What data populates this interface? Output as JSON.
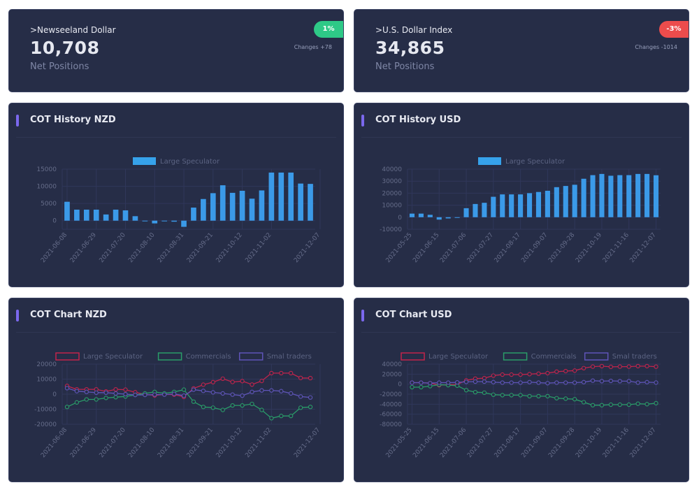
{
  "stat_nzd": {
    "title": ">Newseeland Dollar",
    "value": "10,708",
    "subtitle": "Net Positions",
    "badge": "1%",
    "changes": "Changes +78"
  },
  "stat_usd": {
    "title": ">U.S. Dollar Index",
    "value": "34,865",
    "subtitle": "Net Positions",
    "badge": "-3%",
    "changes": "Changes -1014"
  },
  "colors": {
    "bar": "#3b9ae8",
    "legend_bar": "#36a2eb",
    "large": "#c2244c",
    "commercials": "#2a9d69",
    "small": "#5f55b8",
    "accent": "#7b68ee"
  },
  "charts": {
    "history_nzd": {
      "title": "COT History NZD",
      "chart_data": {
        "type": "bar",
        "legend": "Large Speculator",
        "ylim": [
          -2500,
          15000
        ],
        "yticks": [
          "15000",
          "10000",
          "5000",
          "0"
        ],
        "ytick_values": [
          15000,
          10000,
          5000,
          0
        ],
        "xtick_labels": [
          "2021-06-08",
          "2021-06-29",
          "2021-07-20",
          "2021-08-10",
          "2021-08-31",
          "2021-09-21",
          "2021-10-12",
          "2021-11-02",
          "2021-12-07"
        ],
        "xtick_index": [
          0,
          3,
          6,
          9,
          12,
          15,
          18,
          21,
          26
        ],
        "values": [
          5500,
          3200,
          3200,
          3200,
          1800,
          3200,
          3000,
          1300,
          -200,
          -800,
          -200,
          -300,
          -1800,
          3800,
          6300,
          8000,
          10300,
          8100,
          8700,
          6400,
          8800,
          14000,
          14000,
          14000,
          10800,
          10700
        ]
      }
    },
    "history_usd": {
      "title": "COT History USD",
      "chart_data": {
        "type": "bar",
        "legend": "Large Speculator",
        "ylim": [
          -10000,
          40000
        ],
        "yticks": [
          "40000",
          "30000",
          "20000",
          "10000",
          "0",
          "-10000"
        ],
        "ytick_values": [
          40000,
          30000,
          20000,
          10000,
          0,
          -10000
        ],
        "xtick_labels": [
          "2021-05-25",
          "2021-06-15",
          "2021-07-06",
          "2021-07-27",
          "2021-08-17",
          "2021-09-07",
          "2021-09-28",
          "2021-10-19",
          "2021-11-16",
          "2021-12-07"
        ],
        "xtick_index": [
          0,
          3,
          6,
          9,
          12,
          15,
          18,
          21,
          24,
          27
        ],
        "values": [
          3000,
          3000,
          2000,
          -2000,
          -1000,
          -500,
          7500,
          11000,
          12000,
          17000,
          19000,
          19000,
          19000,
          20000,
          21000,
          22000,
          25000,
          26000,
          27000,
          32000,
          35000,
          36000,
          34500,
          35000,
          35000,
          36000,
          36000,
          34900
        ]
      }
    },
    "cot_nzd": {
      "title": "COT Chart NZD",
      "chart_data": {
        "type": "line",
        "ylim": [
          -20000,
          20000
        ],
        "yticks": [
          "20000",
          "10000",
          "0",
          "-10000",
          "-20000"
        ],
        "ytick_values": [
          20000,
          10000,
          0,
          -10000,
          -20000
        ],
        "xtick_labels": [
          "2021-06-08",
          "2021-06-29",
          "2021-07-20",
          "2021-08-10",
          "2021-08-31",
          "2021-09-21",
          "2021-10-12",
          "2021-11-02",
          "2021-12-07"
        ],
        "xtick_index": [
          0,
          3,
          6,
          9,
          12,
          15,
          18,
          21,
          26
        ],
        "series": [
          {
            "name": "Large Speculator",
            "key": "large",
            "values": [
              5500,
              3200,
              3200,
              3200,
              1800,
              3200,
              3000,
              1300,
              -200,
              -800,
              -200,
              -300,
              -1800,
              3800,
              6300,
              8000,
              10300,
              8100,
              8700,
              6400,
              8800,
              14000,
              14000,
              14000,
              10800,
              10700
            ]
          },
          {
            "name": "Commercials",
            "key": "commercials",
            "values": [
              -8500,
              -5500,
              -3500,
              -3500,
              -2500,
              -2000,
              -1500,
              -500,
              500,
              1500,
              500,
              1500,
              3000,
              -5000,
              -8500,
              -9000,
              -10500,
              -7500,
              -7500,
              -6500,
              -10500,
              -16000,
              -14500,
              -14500,
              -9000,
              -8500
            ]
          },
          {
            "name": "Smal traders",
            "key": "small",
            "values": [
              4000,
              2000,
              1500,
              1000,
              1000,
              500,
              0,
              -500,
              -500,
              -300,
              -300,
              200,
              -1000,
              3000,
              2200,
              1200,
              500,
              -300,
              -1000,
              1500,
              2500,
              2500,
              2000,
              500,
              -1600,
              -2200
            ]
          }
        ]
      }
    },
    "cot_usd": {
      "title": "COT Chart USD",
      "chart_data": {
        "type": "line",
        "ylim": [
          -80000,
          40000
        ],
        "yticks": [
          "40000",
          "20000",
          "0",
          "-20000",
          "-40000",
          "-60000",
          "-80000"
        ],
        "ytick_values": [
          40000,
          20000,
          0,
          -20000,
          -40000,
          -60000,
          -80000
        ],
        "xtick_labels": [
          "2021-05-25",
          "2021-06-15",
          "2021-07-06",
          "2021-07-27",
          "2021-08-17",
          "2021-09-07",
          "2021-09-28",
          "2021-10-19",
          "2021-11-16",
          "2021-12-07"
        ],
        "xtick_index": [
          0,
          3,
          6,
          9,
          12,
          15,
          18,
          21,
          24,
          27
        ],
        "series": [
          {
            "name": "Large Speculator",
            "key": "large",
            "values": [
              3000,
              3000,
              2000,
              -2000,
              -1000,
              -500,
              7500,
              11000,
              12000,
              17000,
              19000,
              19000,
              19000,
              20000,
              21000,
              22000,
              25000,
              26000,
              27000,
              32000,
              35000,
              36000,
              34500,
              35000,
              35000,
              36000,
              36000,
              34900
            ]
          },
          {
            "name": "Commercials",
            "key": "commercials",
            "values": [
              -6000,
              -6000,
              -4000,
              -1000,
              -2000,
              -3000,
              -12000,
              -16000,
              -17000,
              -21000,
              -22000,
              -22000,
              -22000,
              -24000,
              -24000,
              -24000,
              -28000,
              -29000,
              -30000,
              -36000,
              -42000,
              -42000,
              -41000,
              -41000,
              -41000,
              -39000,
              -40000,
              -38000
            ]
          },
          {
            "name": "Smal traders",
            "key": "small",
            "values": [
              3000,
              3000,
              2000,
              3000,
              3000,
              3500,
              4500,
              5000,
              5000,
              4000,
              3000,
              3000,
              3000,
              4000,
              3000,
              2000,
              3000,
              3000,
              3000,
              4000,
              7000,
              6000,
              6500,
              6000,
              6000,
              3000,
              4000,
              3100
            ]
          }
        ]
      }
    }
  }
}
